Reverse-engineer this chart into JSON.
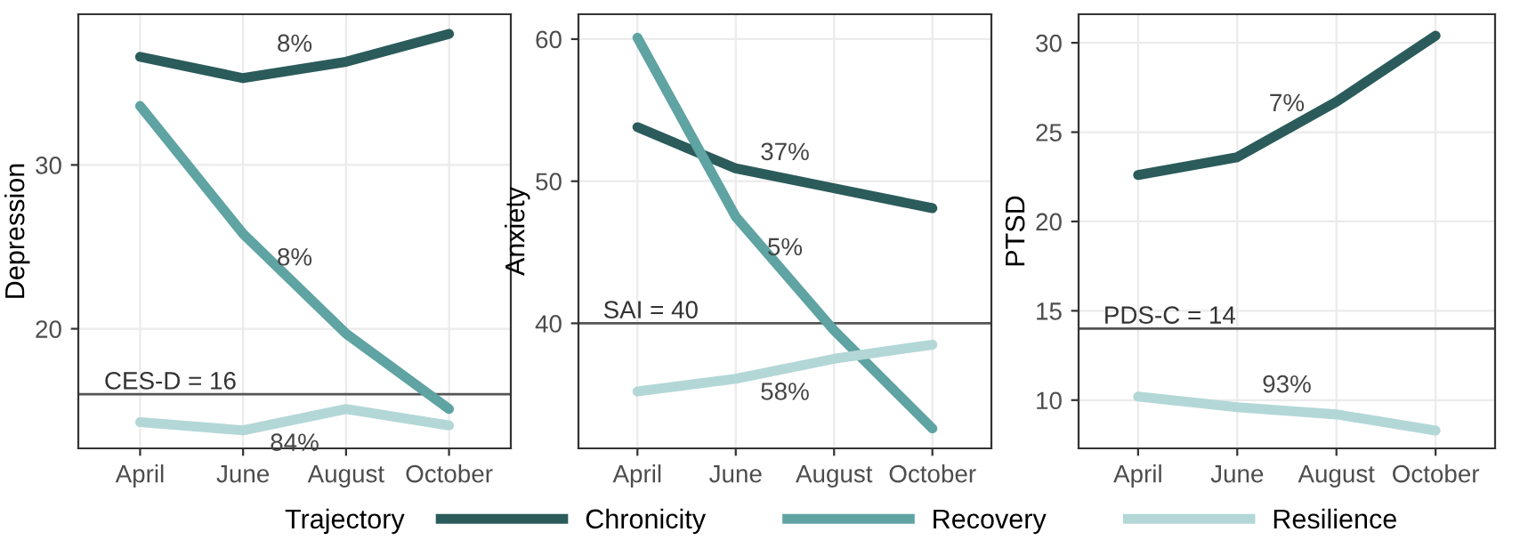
{
  "chart_data": [
    {
      "type": "line",
      "ylabel": "Depression",
      "categories": [
        "April",
        "June",
        "August",
        "October"
      ],
      "ylim": [
        12.7,
        39.2
      ],
      "yticks": [
        20,
        30
      ],
      "grid": true,
      "legend": "bottom",
      "legend_title": "Trajectory",
      "series": [
        {
          "name": "Chronicity",
          "color": "#2b5b5b",
          "values": [
            36.6,
            35.3,
            36.3,
            38.0
          ]
        },
        {
          "name": "Recovery",
          "color": "#5fa3a3",
          "values": [
            33.6,
            25.8,
            19.7,
            15.1
          ]
        },
        {
          "name": "Resilience",
          "color": "#b3d7d7",
          "values": [
            14.3,
            13.8,
            15.1,
            14.1
          ]
        }
      ],
      "ref_lines": [
        {
          "axis": "y",
          "value": 16,
          "label": "CES-D = 16",
          "color": "#555555"
        }
      ],
      "annotations": [
        "8%",
        "8%",
        "84%"
      ]
    },
    {
      "type": "line",
      "ylabel": "Anxiety",
      "categories": [
        "April",
        "June",
        "August",
        "October"
      ],
      "ylim": [
        31.2,
        61.75
      ],
      "yticks": [
        40,
        50,
        60
      ],
      "grid": true,
      "series": [
        {
          "color": "#2b5b5b",
          "values": [
            53.8,
            50.9,
            49.5,
            48.1
          ]
        },
        {
          "color": "#5fa3a3",
          "values": [
            60.1,
            47.5,
            39.5,
            32.6
          ]
        },
        {
          "color": "#b3d7d7",
          "values": [
            35.2,
            36.1,
            37.5,
            38.5
          ]
        }
      ],
      "ref_lines": [
        {
          "axis": "y",
          "value": 40,
          "label": "SAI = 40",
          "color": "#555555"
        }
      ],
      "annotations": [
        "37%",
        "5%",
        "58%"
      ]
    },
    {
      "type": "line",
      "ylabel": "PTSD",
      "categories": [
        "April",
        "June",
        "August",
        "October"
      ],
      "ylim": [
        7.3,
        31.6
      ],
      "yticks": [
        10,
        15,
        20,
        25,
        30
      ],
      "grid": true,
      "series": [
        {
          "color": "#2b5b5b",
          "values": [
            22.6,
            23.6,
            26.7,
            30.4
          ]
        },
        {
          "color": "#b3d7d7",
          "values": [
            10.2,
            9.6,
            9.2,
            8.3
          ]
        }
      ],
      "ref_lines": [
        {
          "axis": "y",
          "value": 14,
          "label": "PDS-C = 14",
          "color": "#555555"
        }
      ],
      "annotations": [
        "7%",
        "93%"
      ]
    }
  ]
}
